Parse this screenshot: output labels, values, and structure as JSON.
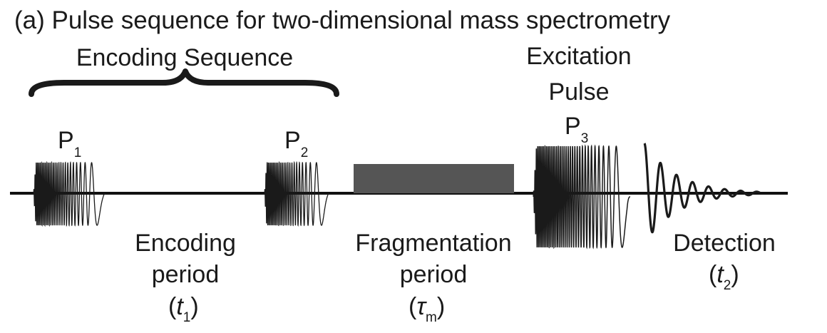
{
  "title": "(a) Pulse sequence for two-dimensional mass spectrometry",
  "encoding_sequence": "Encoding Sequence",
  "pulses": {
    "p1": {
      "letter": "P",
      "sub": "1"
    },
    "p2": {
      "letter": "P",
      "sub": "2"
    },
    "p3": {
      "letter": "P",
      "sub": "3"
    }
  },
  "excitation": {
    "line1": "Excitation",
    "line2": "Pulse"
  },
  "encoding_period": {
    "line1": "Encoding",
    "line2": "period",
    "open": "(",
    "var": "t",
    "sub": "1",
    "close": ")"
  },
  "fragmentation_period": {
    "line1": "Fragmentation",
    "line2": "period",
    "open": "(",
    "var": "τ",
    "sub": "m",
    "close": ")"
  },
  "detection": {
    "line1": "Detection",
    "open": "(",
    "var": "t",
    "sub": "2",
    "close": ")"
  },
  "colors": {
    "ink": "#1a1a1a",
    "block": "#555555",
    "baseline": "#111111"
  }
}
